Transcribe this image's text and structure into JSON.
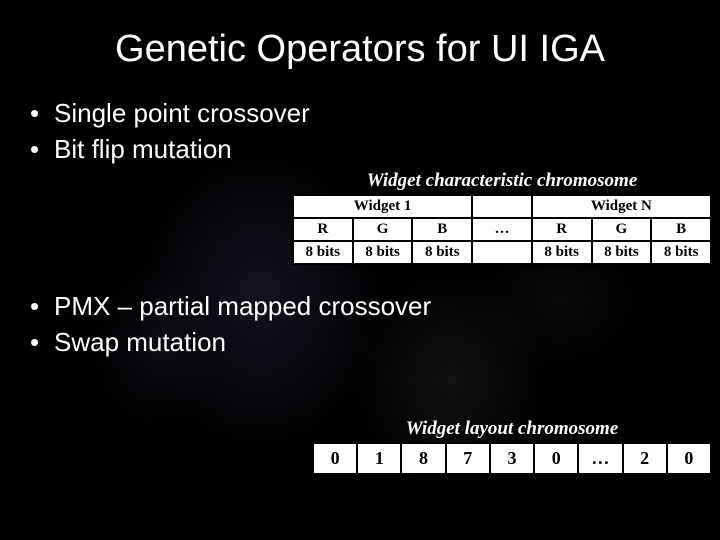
{
  "title": "Genetic Operators for UI IGA",
  "bullets_top": {
    "b1": "Single point crossover",
    "b2": "Bit flip mutation"
  },
  "bullets_bottom": {
    "b1": "PMX – partial mapped crossover",
    "b2": "Swap mutation"
  },
  "characteristic_table": {
    "caption": "Widget characteristic chromosome",
    "header": {
      "w1": "Widget 1",
      "gap": "",
      "wn": "Widget N"
    },
    "rgb_row": {
      "r1": "R",
      "g1": "G",
      "b1": "B",
      "mid": "…",
      "r2": "R",
      "g2": "G",
      "b2": "B"
    },
    "bits_row": {
      "c1": "8 bits",
      "c2": "8 bits",
      "c3": "8 bits",
      "mid": "",
      "c4": "8 bits",
      "c5": "8 bits",
      "c6": "8 bits"
    },
    "colors": {
      "cell_bg": "#ffffff",
      "border": "#000000",
      "text": "#000000"
    }
  },
  "layout_table": {
    "caption": "Widget layout chromosome",
    "cells": {
      "c0": "0",
      "c1": "1",
      "c2": "8",
      "c3": "7",
      "c4": "3",
      "c5": "0",
      "c6": "…",
      "c7": "2",
      "c8": "0"
    },
    "colors": {
      "cell_bg": "#ffffff",
      "border": "#000000",
      "text": "#000000"
    }
  },
  "style": {
    "background": "#000000",
    "text_color": "#ffffff",
    "title_fontsize": 38,
    "bullet_fontsize": 26
  }
}
